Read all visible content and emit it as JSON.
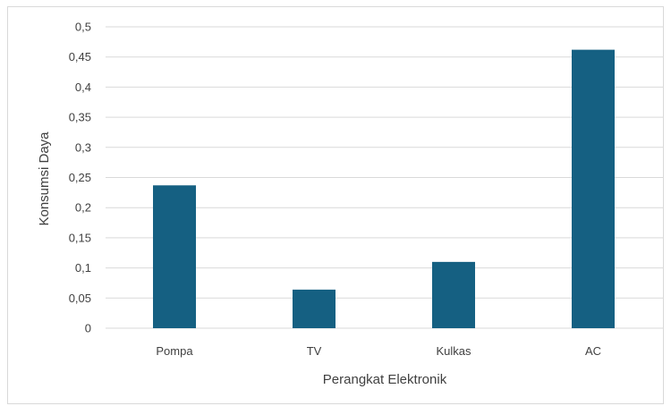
{
  "chart_data": {
    "type": "bar",
    "title": "",
    "categories": [
      "Pompa",
      "TV",
      "Kulkas",
      "AC"
    ],
    "values": [
      0.237,
      0.064,
      0.11,
      0.462
    ],
    "xlabel": "Perangkat Elektronik",
    "ylabel": "Konsumsi Daya",
    "ylim": [
      0,
      0.5
    ],
    "yticks": [
      "0",
      "0,05",
      "0,1",
      "0,15",
      "0,2",
      "0,25",
      "0,3",
      "0,35",
      "0,4",
      "0,45",
      "0,5"
    ],
    "grid": true,
    "legend": "none",
    "bar_color": "#156082",
    "grid_color": "#d9d9d9"
  }
}
